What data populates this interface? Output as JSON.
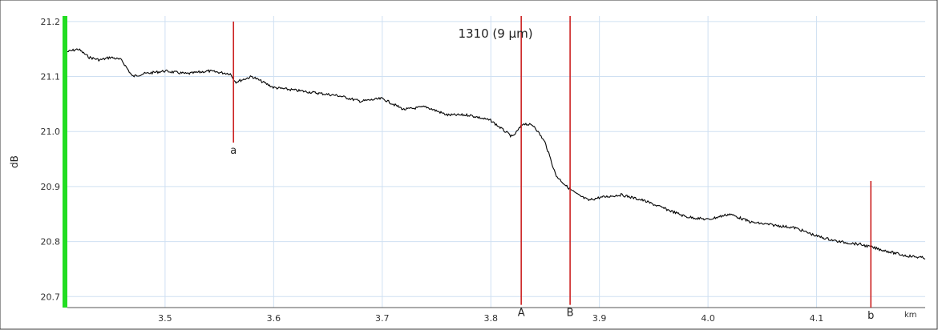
{
  "chart_data": {
    "type": "line",
    "title": "1310 (9 µm)",
    "xlabel": "",
    "ylabel": "dB",
    "x_unit": "km",
    "xlim": [
      3.41,
      4.2
    ],
    "ylim": [
      20.68,
      21.21
    ],
    "x_ticks": [
      3.5,
      3.6,
      3.7,
      3.8,
      3.9,
      4.0,
      4.1
    ],
    "y_ticks": [
      20.7,
      20.8,
      20.9,
      21.0,
      21.1,
      21.2
    ],
    "grid": true,
    "colors": {
      "trace": "#000000",
      "markers": "#cc2222",
      "grid": "#cfe0f2",
      "axis_band": "#22dd22"
    },
    "series": [
      {
        "x": [
          3.41,
          3.42,
          3.43,
          3.44,
          3.45,
          3.46,
          3.47,
          3.48,
          3.5,
          3.52,
          3.54,
          3.56,
          3.565,
          3.58,
          3.6,
          3.62,
          3.64,
          3.66,
          3.68,
          3.7,
          3.72,
          3.74,
          3.76,
          3.78,
          3.8,
          3.81,
          3.82,
          3.83,
          3.84,
          3.85,
          3.86,
          3.87,
          3.88,
          3.89,
          3.9,
          3.92,
          3.94,
          3.96,
          3.98,
          4.0,
          4.02,
          4.04,
          4.06,
          4.08,
          4.1,
          4.12,
          4.14,
          4.16,
          4.18,
          4.2
        ],
        "y": [
          21.145,
          21.15,
          21.135,
          21.13,
          21.135,
          21.13,
          21.1,
          21.105,
          21.11,
          21.105,
          21.11,
          21.105,
          21.09,
          21.1,
          21.08,
          21.075,
          21.07,
          21.065,
          21.055,
          21.06,
          21.04,
          21.045,
          21.03,
          21.03,
          21.02,
          21.005,
          20.99,
          21.015,
          21.01,
          20.98,
          20.92,
          20.9,
          20.885,
          20.875,
          20.88,
          20.885,
          20.875,
          20.86,
          20.845,
          20.84,
          20.85,
          20.835,
          20.83,
          20.825,
          20.81,
          20.8,
          20.795,
          20.785,
          20.775,
          20.77
        ]
      }
    ],
    "markers": [
      {
        "label": "a",
        "x": 3.563,
        "y_top": 21.2,
        "y_bottom": 20.98
      },
      {
        "label": "A",
        "x": 3.828,
        "y_top": 21.21,
        "y_bottom": 20.685
      },
      {
        "label": "B",
        "x": 3.873,
        "y_top": 21.21,
        "y_bottom": 20.685
      },
      {
        "label": "b",
        "x": 4.15,
        "y_top": 20.91,
        "y_bottom": 20.68
      }
    ]
  }
}
